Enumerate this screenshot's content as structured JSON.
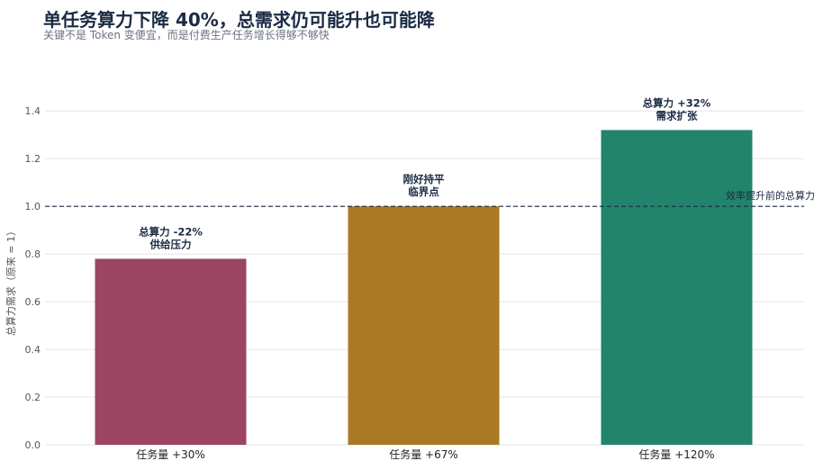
{
  "header": {
    "title": "单任务算力下降 40%，总需求仍可能升也可能降",
    "subtitle": "关键不是 Token 变便宜，而是付费生产任务增长得够不够快"
  },
  "colors": {
    "bar1": "#9b4563",
    "bar2": "#a97923",
    "bar3": "#23846c",
    "grid": "#e5e5e5",
    "reference": "#1b2a44"
  },
  "chart_data": {
    "type": "bar",
    "categories": [
      "任务量 +30%",
      "任务量 +67%",
      "任务量 +120%"
    ],
    "values": [
      0.78,
      1.0,
      1.32
    ],
    "bar_labels": [
      [
        "总算力 -22%",
        "供给压力"
      ],
      [
        "刚好持平",
        "临界点"
      ],
      [
        "总算力 +32%",
        "需求扩张"
      ]
    ],
    "ylabel": "总算力需求（原来 = 1）",
    "xlabel": "",
    "ylim": [
      0,
      1.45
    ],
    "yticks": [
      "0.0",
      "0.2",
      "0.4",
      "0.6",
      "0.8",
      "1.0",
      "1.2",
      "1.4"
    ],
    "reference_line": {
      "value": 1.0,
      "label": "效率提升前的总算力"
    },
    "grid": true
  }
}
